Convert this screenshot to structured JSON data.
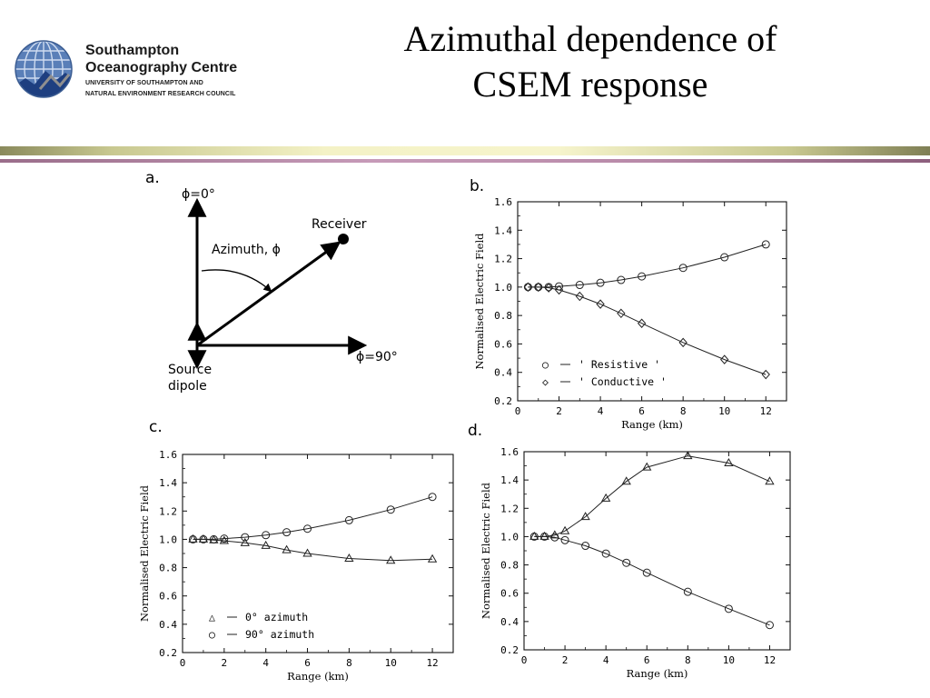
{
  "slide": {
    "title_line1": "Azimuthal dependence of",
    "title_line2": "CSEM response"
  },
  "logo": {
    "name_line1": "Southampton",
    "name_line2": "Oceanography Centre",
    "sub_line1": "UNIVERSITY OF SOUTHAMPTON AND",
    "sub_line2": "NATURAL ENVIRONMENT RESEARCH COUNCIL"
  },
  "panel_a": {
    "label": "a.",
    "phi0": "ϕ=0°",
    "phi90": "ϕ=90°",
    "receiver": "Receiver",
    "azimuth": "Azimuth, ϕ",
    "source_line1": "Source",
    "source_line2": "dipole"
  },
  "chart_data": [
    {
      "id": "b",
      "label": "b.",
      "type": "line",
      "xlabel": "Range (km)",
      "ylabel": "Normalised Electric Field",
      "xlim": [
        0,
        13
      ],
      "ylim": [
        0.2,
        1.6
      ],
      "xticks": [
        0,
        2,
        4,
        6,
        8,
        10,
        12
      ],
      "yticks": [
        0.2,
        0.4,
        0.6,
        0.8,
        1.0,
        1.2,
        1.4,
        1.6
      ],
      "grid": false,
      "legend_position": "bottom-left",
      "series": [
        {
          "name": "' Resistive '",
          "marker": "circle",
          "legend_symbol": "○",
          "x": [
            0.5,
            1.0,
            1.5,
            2.0,
            3.0,
            4.0,
            5.0,
            6.0,
            8.0,
            10.0,
            12.0
          ],
          "y": [
            1.0,
            1.0,
            1.0,
            1.005,
            1.015,
            1.03,
            1.05,
            1.075,
            1.135,
            1.21,
            1.3
          ]
        },
        {
          "name": "' Conductive '",
          "marker": "diamond",
          "legend_symbol": "◇",
          "x": [
            0.5,
            1.0,
            1.5,
            2.0,
            3.0,
            4.0,
            5.0,
            6.0,
            8.0,
            10.0,
            12.0
          ],
          "y": [
            1.0,
            1.0,
            0.995,
            0.98,
            0.935,
            0.88,
            0.815,
            0.745,
            0.61,
            0.49,
            0.385
          ]
        }
      ]
    },
    {
      "id": "c",
      "label": "c.",
      "type": "line",
      "xlabel": "Range (km)",
      "ylabel": "Normalised Electric Field",
      "xlim": [
        0,
        13
      ],
      "ylim": [
        0.2,
        1.6
      ],
      "xticks": [
        0,
        2,
        4,
        6,
        8,
        10,
        12
      ],
      "yticks": [
        0.2,
        0.4,
        0.6,
        0.8,
        1.0,
        1.2,
        1.4,
        1.6
      ],
      "grid": false,
      "legend_position": "bottom-left",
      "series": [
        {
          "name": "0° azimuth",
          "marker": "triangle",
          "legend_symbol": "△",
          "x": [
            0.5,
            1.0,
            1.5,
            2.0,
            3.0,
            4.0,
            5.0,
            6.0,
            8.0,
            10.0,
            12.0
          ],
          "y": [
            1.0,
            1.0,
            0.995,
            0.99,
            0.975,
            0.955,
            0.925,
            0.9,
            0.865,
            0.85,
            0.86
          ]
        },
        {
          "name": "90° azimuth",
          "marker": "circle",
          "legend_symbol": "○",
          "x": [
            0.5,
            1.0,
            1.5,
            2.0,
            3.0,
            4.0,
            5.0,
            6.0,
            8.0,
            10.0,
            12.0
          ],
          "y": [
            1.0,
            1.0,
            1.0,
            1.005,
            1.015,
            1.03,
            1.05,
            1.075,
            1.135,
            1.21,
            1.3
          ]
        }
      ]
    },
    {
      "id": "d",
      "label": "d.",
      "type": "line",
      "xlabel": "Range (km)",
      "ylabel": "Normalised Electric Field",
      "xlim": [
        0,
        13
      ],
      "ylim": [
        0.2,
        1.6
      ],
      "xticks": [
        0,
        2,
        4,
        6,
        8,
        10,
        12
      ],
      "yticks": [
        0.2,
        0.4,
        0.6,
        0.8,
        1.0,
        1.2,
        1.4,
        1.6
      ],
      "grid": false,
      "legend_position": "none",
      "series": [
        {
          "name": "",
          "marker": "triangle",
          "x": [
            0.5,
            1.0,
            1.5,
            2.0,
            3.0,
            4.0,
            5.0,
            6.0,
            8.0,
            10.0,
            12.0
          ],
          "y": [
            1.0,
            1.0,
            1.01,
            1.04,
            1.14,
            1.27,
            1.39,
            1.49,
            1.57,
            1.52,
            1.39
          ]
        },
        {
          "name": "",
          "marker": "circle",
          "x": [
            0.5,
            1.0,
            1.5,
            2.0,
            3.0,
            4.0,
            5.0,
            6.0,
            8.0,
            10.0,
            12.0
          ],
          "y": [
            1.0,
            1.0,
            0.995,
            0.975,
            0.935,
            0.88,
            0.815,
            0.745,
            0.61,
            0.49,
            0.375
          ]
        }
      ]
    }
  ]
}
